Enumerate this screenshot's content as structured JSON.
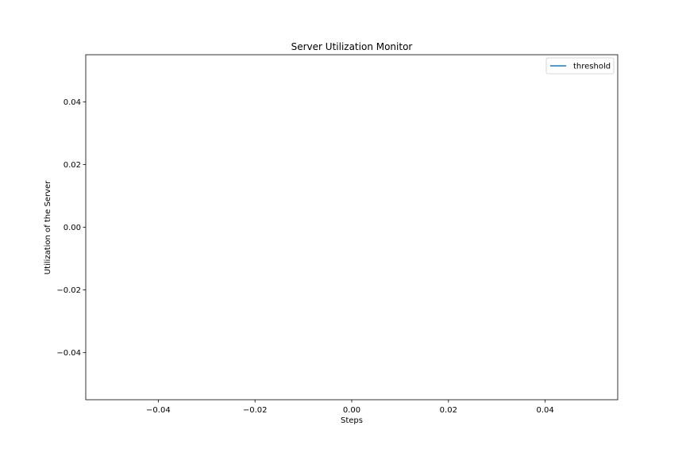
{
  "chart_data": {
    "type": "line",
    "title": "Server Utilization Monitor",
    "xlabel": "Steps",
    "ylabel": "Utilization of the Server",
    "xlim": [
      -0.055,
      0.055
    ],
    "ylim": [
      -0.055,
      0.055
    ],
    "x_ticks": [
      -0.04,
      -0.02,
      0.0,
      0.02,
      0.04
    ],
    "x_tick_labels": [
      "−0.04",
      "−0.02",
      "0.00",
      "0.02",
      "0.04"
    ],
    "y_ticks": [
      -0.04,
      -0.02,
      0.0,
      0.02,
      0.04
    ],
    "y_tick_labels": [
      "−0.04",
      "−0.02",
      "0.00",
      "0.02",
      "0.04"
    ],
    "grid": false,
    "legend_position": "upper right",
    "series": [
      {
        "name": "threshold",
        "color": "#1f77b4",
        "x": [],
        "y": []
      }
    ]
  }
}
